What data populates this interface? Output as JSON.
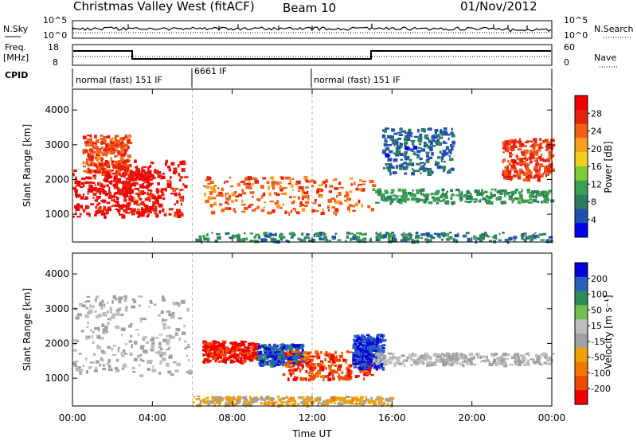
{
  "header": {
    "title": "Christmas Valley West (fitACF)",
    "beam": "Beam 10",
    "date": "01/Nov/2012"
  },
  "strips": {
    "nsky_label": "N.Sky",
    "nsearch_label": "N.Search",
    "noise_ticks": [
      "10^5",
      "10^0"
    ],
    "freq_label": "Freq.",
    "freq_unit": "[MHz]",
    "freq_ticks": [
      "18",
      "8"
    ],
    "nave_label": "Nave",
    "nave_ticks": [
      "60",
      "0"
    ],
    "cpid_label": "CPID",
    "cpid_segments": [
      {
        "label": "normal (fast) 151 IF",
        "start_h": 0,
        "end_h": 6
      },
      {
        "label": "6661 IF",
        "start_h": 6,
        "end_h": 12
      },
      {
        "label": "normal (fast) 151 IF",
        "start_h": 12,
        "end_h": 24
      }
    ]
  },
  "colors": {
    "power_scale": [
      "#0000ee",
      "#2050b0",
      "#2e7d5e",
      "#3aa050",
      "#7ccc3a",
      "#f0d020",
      "#f7a020",
      "#f06018",
      "#e82010",
      "#f00000"
    ],
    "velocity_scale": [
      "#ee0000",
      "#f04a00",
      "#f07800",
      "#f0a000",
      "#a0a0a0",
      "#bdbdbd",
      "#70c050",
      "#2f8a5a",
      "#2a5fbe",
      "#0000dd"
    ],
    "ground_scatter": "#b9b9b0"
  },
  "chart_data": [
    {
      "type": "heatmap",
      "name": "Power",
      "x_axis": {
        "label": "Time UT",
        "range_h": [
          0,
          24
        ],
        "tick_labels": [
          "00:00",
          "04:00",
          "08:00",
          "12:00",
          "16:00",
          "20:00",
          "00:00"
        ]
      },
      "y_axis": {
        "label": "Slant Range [km]",
        "range": [
          200,
          4600
        ],
        "ticks": [
          1000,
          2000,
          3000,
          4000
        ]
      },
      "colorbar": {
        "label": "Power [dB]",
        "range": [
          0,
          32
        ],
        "ticks": [
          4,
          8,
          12,
          16,
          20,
          24,
          28
        ]
      },
      "features": [
        {
          "t0": 0,
          "t1": 4,
          "r0": 950,
          "r1": 2300,
          "value": 30
        },
        {
          "t0": 0.5,
          "t1": 2.8,
          "r0": 2200,
          "r1": 3300,
          "value": 25
        },
        {
          "t0": 1,
          "t1": 5.6,
          "r0": 1000,
          "r1": 2600,
          "value": 28
        },
        {
          "t0": 6.5,
          "t1": 15,
          "r0": 1050,
          "r1": 2100,
          "value": 24
        },
        {
          "t0": 15,
          "t1": 24,
          "r0": 1350,
          "r1": 1750,
          "value": 10
        },
        {
          "t0": 15.5,
          "t1": 19,
          "r0": 2200,
          "r1": 3500,
          "value": 6
        },
        {
          "t0": 21.5,
          "t1": 24,
          "r0": 2000,
          "r1": 3200,
          "value": 26
        },
        {
          "t0": 6,
          "t1": 24,
          "r0": 250,
          "r1": 500,
          "value": 8
        }
      ]
    },
    {
      "type": "heatmap",
      "name": "Velocity",
      "x_axis": {
        "label": "Time UT",
        "range_h": [
          0,
          24
        ],
        "tick_labels": [
          "00:00",
          "04:00",
          "08:00",
          "12:00",
          "16:00",
          "20:00",
          "00:00"
        ]
      },
      "y_axis": {
        "label": "Slant Range [km]",
        "range": [
          200,
          4600
        ],
        "ticks": [
          1000,
          2000,
          3000,
          4000
        ]
      },
      "colorbar": {
        "label": "Velocity [m s⁻¹]",
        "range": [
          -250,
          250
        ],
        "ticks": [
          200,
          100,
          50,
          15,
          -15,
          -50,
          -100,
          -200
        ]
      },
      "features": [
        {
          "t0": 0,
          "t1": 5.8,
          "r0": 1100,
          "r1": 3400,
          "value": 0
        },
        {
          "t0": 6.5,
          "t1": 9.2,
          "r0": 1500,
          "r1": 2100,
          "value": -220
        },
        {
          "t0": 9.2,
          "t1": 11.5,
          "r0": 1400,
          "r1": 2000,
          "value": 180
        },
        {
          "t0": 10.5,
          "t1": 15,
          "r0": 1000,
          "r1": 1800,
          "value": -180
        },
        {
          "t0": 14,
          "t1": 15.5,
          "r0": 1300,
          "r1": 2300,
          "value": 200
        },
        {
          "t0": 15,
          "t1": 24,
          "r0": 1400,
          "r1": 1750,
          "value": 0
        },
        {
          "t0": 6,
          "t1": 16,
          "r0": 250,
          "r1": 500,
          "value": -60
        }
      ]
    }
  ],
  "x_axis_title": "Time UT",
  "y_axis_title": "Slant Range [km]",
  "power_colorbar_label": "Power [dB]",
  "velocity_colorbar_label": "Velocity [m s⁻¹]"
}
